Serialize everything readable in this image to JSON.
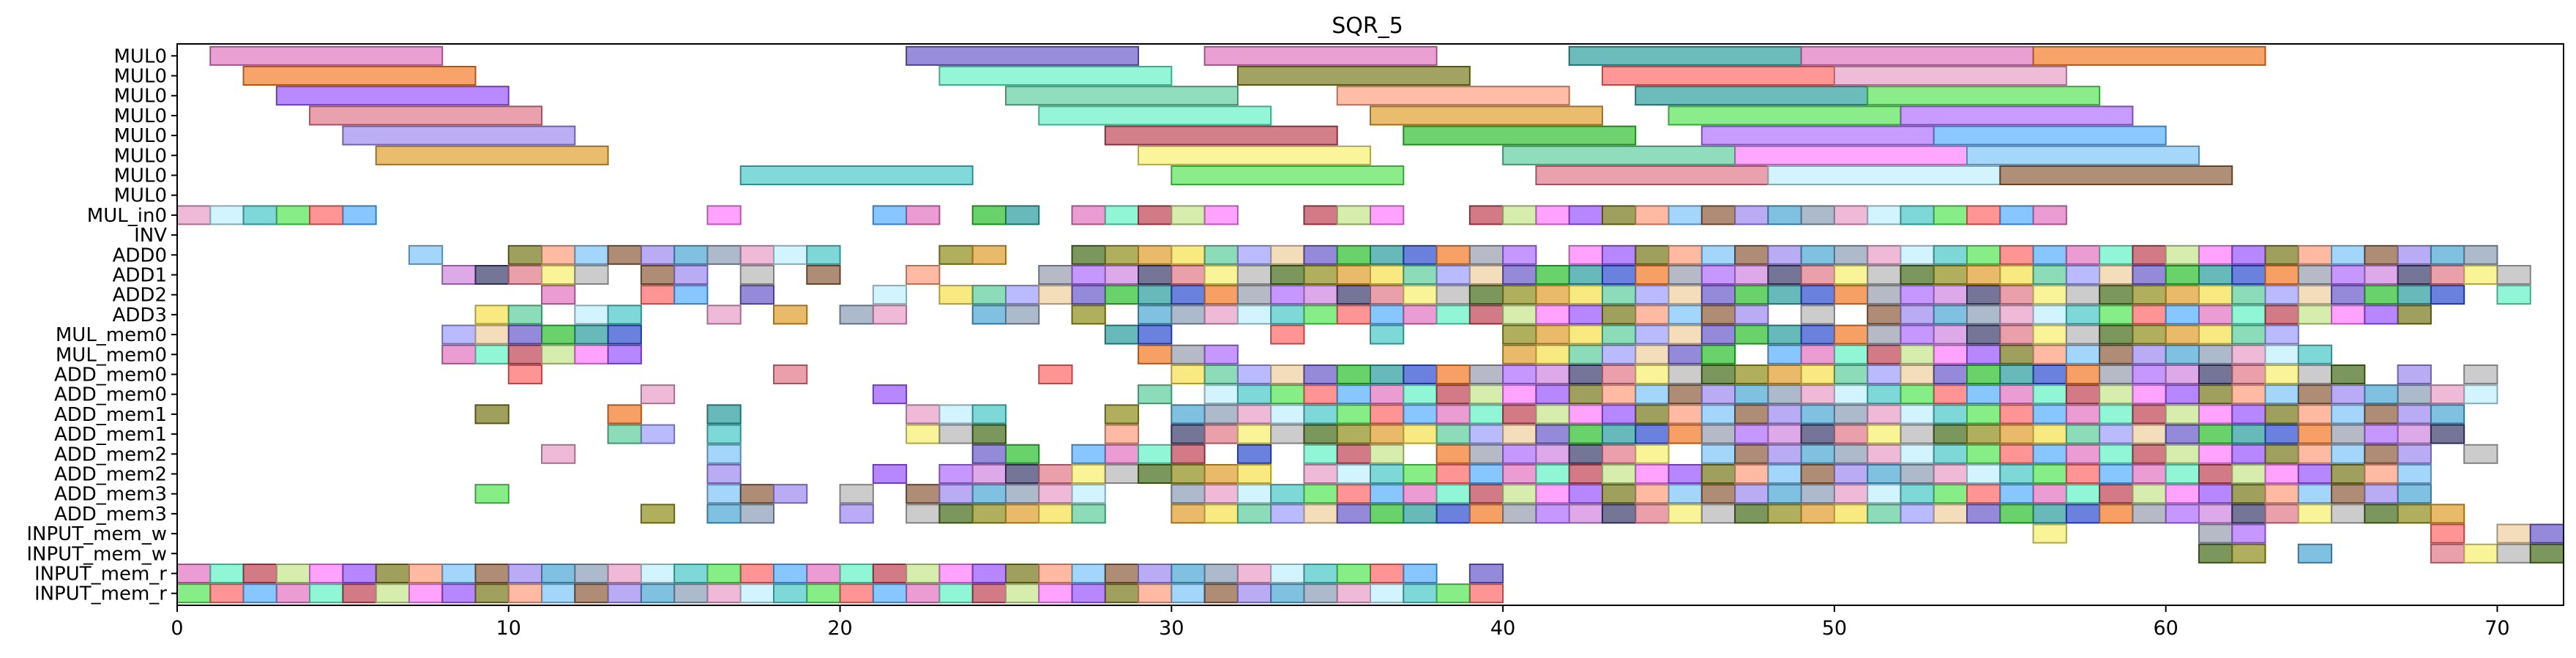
{
  "chart_data": {
    "type": "gantt",
    "title": "SQR_5",
    "xlabel": "",
    "ylabel": "",
    "xlim": [
      0,
      72
    ],
    "x_ticks": [
      0,
      10,
      20,
      30,
      40,
      50,
      60,
      70
    ],
    "rows": [
      "MUL0",
      "MUL0",
      "MUL0",
      "MUL0",
      "MUL0",
      "MUL0",
      "MUL0",
      "MUL0",
      "MUL_in0",
      "INV",
      "ADD0",
      "ADD1",
      "ADD2",
      "ADD3",
      "MUL_mem0",
      "MUL_mem0",
      "ADD_mem0",
      "ADD_mem0",
      "ADD_mem1",
      "ADD_mem1",
      "ADD_mem2",
      "ADD_mem2",
      "ADD_mem3",
      "ADD_mem3",
      "INPUT_mem_w",
      "INPUT_mem_w",
      "INPUT_mem_r",
      "INPUT_mem_r"
    ],
    "palette": [
      "#e377c2",
      "#f47c2a",
      "#9b59ff",
      "#e07b8a",
      "#a08cf0",
      "#e0a030",
      "#4cc9c9",
      "#6c5ccc",
      "#66f2c6",
      "#9aa0b0",
      "#7a7a20",
      "#f8f070",
      "#4fa9d6",
      "#f5e050",
      "#59e659",
      "#30c030",
      "#c04858",
      "#b070ff",
      "#ffa080",
      "#b8b8b8",
      "#8ca0b8",
      "#5fcf9f",
      "#ff6b6b",
      "#2ea0a0",
      "#c8e68f",
      "#d088e0",
      "#7fc6f8",
      "#4a6f20",
      "#e8a0c8",
      "#a0a0ff",
      "#59b0ff",
      "#3050d0",
      "#ff80ff",
      "#404070",
      "#8f6040",
      "#909020",
      "#c0f0ff",
      "#f0d0a0"
    ],
    "mul_bars": [
      {
        "row": 0,
        "start": 1,
        "end": 8,
        "c": 0
      },
      {
        "row": 0,
        "start": 22,
        "end": 29,
        "c": 7
      },
      {
        "row": 0,
        "start": 31,
        "end": 38,
        "c": 0
      },
      {
        "row": 0,
        "start": 42,
        "end": 49,
        "c": 23
      },
      {
        "row": 0,
        "start": 49,
        "end": 56,
        "c": 0
      },
      {
        "row": 0,
        "start": 56,
        "end": 63,
        "c": 1
      },
      {
        "row": 1,
        "start": 2,
        "end": 9,
        "c": 1
      },
      {
        "row": 1,
        "start": 23,
        "end": 30,
        "c": 8
      },
      {
        "row": 1,
        "start": 32,
        "end": 39,
        "c": 10
      },
      {
        "row": 1,
        "start": 43,
        "end": 50,
        "c": 22
      },
      {
        "row": 1,
        "start": 50,
        "end": 57,
        "c": 28
      },
      {
        "row": 2,
        "start": 3,
        "end": 10,
        "c": 2
      },
      {
        "row": 2,
        "start": 25,
        "end": 32,
        "c": 21
      },
      {
        "row": 2,
        "start": 35,
        "end": 42,
        "c": 18
      },
      {
        "row": 2,
        "start": 44,
        "end": 51,
        "c": 23
      },
      {
        "row": 2,
        "start": 51,
        "end": 58,
        "c": 14
      },
      {
        "row": 3,
        "start": 4,
        "end": 11,
        "c": 3
      },
      {
        "row": 3,
        "start": 26,
        "end": 33,
        "c": 8
      },
      {
        "row": 3,
        "start": 36,
        "end": 43,
        "c": 5
      },
      {
        "row": 3,
        "start": 45,
        "end": 52,
        "c": 14
      },
      {
        "row": 3,
        "start": 52,
        "end": 59,
        "c": 17
      },
      {
        "row": 4,
        "start": 5,
        "end": 12,
        "c": 4
      },
      {
        "row": 4,
        "start": 28,
        "end": 35,
        "c": 16
      },
      {
        "row": 4,
        "start": 37,
        "end": 44,
        "c": 15
      },
      {
        "row": 4,
        "start": 46,
        "end": 53,
        "c": 17
      },
      {
        "row": 4,
        "start": 53,
        "end": 60,
        "c": 30
      },
      {
        "row": 5,
        "start": 6,
        "end": 13,
        "c": 5
      },
      {
        "row": 5,
        "start": 29,
        "end": 36,
        "c": 11
      },
      {
        "row": 5,
        "start": 40,
        "end": 47,
        "c": 21
      },
      {
        "row": 5,
        "start": 47,
        "end": 54,
        "c": 32
      },
      {
        "row": 5,
        "start": 54,
        "end": 61,
        "c": 26
      },
      {
        "row": 6,
        "start": 17,
        "end": 24,
        "c": 6
      },
      {
        "row": 6,
        "start": 30,
        "end": 37,
        "c": 14
      },
      {
        "row": 6,
        "start": 41,
        "end": 48,
        "c": 3
      },
      {
        "row": 6,
        "start": 48,
        "end": 55,
        "c": 36
      },
      {
        "row": 6,
        "start": 55,
        "end": 62,
        "c": 34
      }
    ],
    "unit_rows": [
      {
        "row": 8,
        "starts": [
          0,
          1,
          2,
          3,
          4,
          5,
          16,
          21,
          22,
          24,
          25,
          27,
          28,
          29,
          30,
          31,
          34,
          35,
          36,
          39,
          40,
          41,
          42,
          43,
          44,
          45,
          46,
          47,
          48,
          49,
          50,
          51,
          52,
          53,
          54,
          55,
          56
        ]
      },
      {
        "row": 10,
        "starts": [
          7,
          10,
          11,
          12,
          13,
          14,
          15,
          16,
          17,
          18,
          19,
          23,
          24,
          27,
          28,
          29,
          30,
          31,
          32,
          33,
          34,
          35,
          36,
          37,
          38,
          39,
          40,
          42,
          43,
          44,
          45,
          46,
          47,
          48,
          49,
          50,
          51,
          52,
          53,
          54,
          55,
          56,
          57,
          58,
          59,
          60,
          61,
          62,
          63,
          64,
          65,
          66,
          67,
          68,
          69
        ]
      },
      {
        "row": 11,
        "starts": [
          8,
          9,
          10,
          11,
          12,
          14,
          15,
          17,
          19,
          22,
          26,
          27,
          28,
          29,
          30,
          31,
          32,
          33,
          34,
          35,
          36,
          37,
          38,
          39,
          40,
          41,
          42,
          43,
          44,
          45,
          46,
          47,
          48,
          49,
          50,
          51,
          52,
          53,
          54,
          55,
          56,
          57,
          58,
          59,
          60,
          61,
          62,
          63,
          64,
          65,
          66,
          67,
          68,
          69,
          70
        ]
      },
      {
        "row": 12,
        "starts": [
          11,
          14,
          15,
          17,
          21,
          23,
          24,
          25,
          26,
          27,
          28,
          29,
          30,
          31,
          32,
          33,
          34,
          35,
          36,
          37,
          38,
          39,
          40,
          41,
          42,
          43,
          44,
          45,
          46,
          47,
          48,
          49,
          50,
          51,
          52,
          53,
          54,
          55,
          56,
          57,
          58,
          59,
          60,
          61,
          62,
          63,
          64,
          65,
          66,
          67,
          68,
          70
        ]
      },
      {
        "row": 13,
        "starts": [
          9,
          10,
          12,
          13,
          16,
          18,
          20,
          21,
          24,
          25,
          27,
          29,
          30,
          31,
          32,
          33,
          34,
          35,
          36,
          37,
          38,
          39,
          40,
          41,
          42,
          43,
          44,
          45,
          46,
          47,
          49,
          51,
          52,
          53,
          54,
          55,
          56,
          57,
          58,
          59,
          60,
          61,
          62,
          63,
          64,
          65,
          66,
          67
        ]
      },
      {
        "row": 14,
        "starts": [
          8,
          9,
          10,
          11,
          12,
          13,
          28,
          29,
          33,
          36,
          40,
          41,
          42,
          43,
          44,
          45,
          46,
          47,
          48,
          49,
          50,
          51,
          52,
          53,
          54,
          55,
          56,
          57,
          58,
          59,
          60,
          61,
          62,
          63
        ]
      },
      {
        "row": 15,
        "starts": [
          8,
          9,
          10,
          11,
          12,
          13,
          29,
          30,
          31,
          40,
          41,
          42,
          43,
          44,
          45,
          46,
          48,
          49,
          50,
          51,
          52,
          53,
          54,
          55,
          56,
          57,
          58,
          59,
          60,
          61,
          62,
          63,
          64
        ]
      },
      {
        "row": 16,
        "starts": [
          10,
          18,
          26,
          30,
          31,
          32,
          33,
          34,
          35,
          36,
          37,
          38,
          39,
          40,
          41,
          42,
          43,
          44,
          45,
          46,
          47,
          48,
          49,
          50,
          51,
          52,
          53,
          54,
          55,
          56,
          57,
          58,
          59,
          60,
          61,
          62,
          63,
          64,
          65,
          67,
          69
        ]
      },
      {
        "row": 17,
        "starts": [
          14,
          21,
          29,
          31,
          32,
          33,
          34,
          35,
          36,
          37,
          38,
          39,
          40,
          41,
          42,
          43,
          44,
          45,
          46,
          47,
          48,
          49,
          50,
          51,
          52,
          53,
          54,
          55,
          56,
          57,
          58,
          59,
          60,
          61,
          62,
          63,
          64,
          65,
          66,
          67,
          68,
          69
        ]
      },
      {
        "row": 18,
        "starts": [
          9,
          13,
          16,
          22,
          23,
          24,
          28,
          30,
          31,
          32,
          33,
          34,
          35,
          36,
          37,
          38,
          39,
          40,
          41,
          42,
          43,
          44,
          45,
          46,
          47,
          48,
          49,
          50,
          51,
          52,
          53,
          54,
          55,
          56,
          57,
          58,
          59,
          60,
          61,
          62,
          63,
          64,
          65,
          66,
          67,
          68
        ]
      },
      {
        "row": 19,
        "starts": [
          13,
          14,
          16,
          22,
          23,
          24,
          28,
          30,
          31,
          32,
          33,
          34,
          35,
          36,
          37,
          38,
          39,
          40,
          41,
          42,
          43,
          44,
          45,
          46,
          47,
          48,
          49,
          50,
          51,
          52,
          53,
          54,
          55,
          56,
          57,
          58,
          59,
          60,
          61,
          62,
          63,
          64,
          65,
          66,
          67,
          68
        ]
      },
      {
        "row": 20,
        "starts": [
          11,
          16,
          24,
          25,
          27,
          28,
          29,
          30,
          32,
          34,
          35,
          36,
          38,
          39,
          40,
          41,
          42,
          43,
          44,
          46,
          47,
          48,
          49,
          50,
          51,
          52,
          53,
          54,
          55,
          56,
          57,
          58,
          59,
          60,
          61,
          62,
          63,
          64,
          65,
          66,
          67,
          69
        ]
      },
      {
        "row": 21,
        "starts": [
          16,
          21,
          23,
          24,
          25,
          26,
          27,
          28,
          29,
          30,
          31,
          32,
          34,
          35,
          36,
          37,
          38,
          39,
          40,
          41,
          42,
          43,
          44,
          45,
          46,
          47,
          48,
          49,
          50,
          51,
          52,
          53,
          54,
          55,
          56,
          57,
          58,
          59,
          60,
          61,
          62,
          63,
          64,
          65,
          66,
          67
        ]
      },
      {
        "row": 22,
        "starts": [
          9,
          16,
          17,
          18,
          20,
          22,
          23,
          24,
          25,
          26,
          27,
          30,
          31,
          32,
          33,
          34,
          35,
          36,
          37,
          38,
          39,
          40,
          41,
          42,
          43,
          44,
          45,
          46,
          47,
          48,
          49,
          50,
          51,
          52,
          53,
          54,
          55,
          56,
          57,
          58,
          59,
          60,
          61,
          62,
          63,
          64,
          65,
          66,
          67
        ]
      },
      {
        "row": 23,
        "starts": [
          14,
          16,
          17,
          20,
          22,
          23,
          24,
          25,
          26,
          27,
          30,
          31,
          32,
          33,
          34,
          35,
          36,
          37,
          38,
          39,
          40,
          41,
          42,
          43,
          44,
          45,
          46,
          47,
          48,
          49,
          50,
          51,
          52,
          53,
          54,
          55,
          56,
          57,
          58,
          59,
          60,
          61,
          62,
          63,
          64,
          65,
          66,
          67,
          68
        ]
      },
      {
        "row": 24,
        "starts": [
          56,
          61,
          62,
          68,
          70,
          71
        ]
      },
      {
        "row": 25,
        "starts": [
          61,
          62,
          64,
          68,
          69,
          70,
          71
        ]
      },
      {
        "row": 26,
        "starts": [
          0,
          1,
          2,
          3,
          4,
          5,
          6,
          7,
          8,
          9,
          10,
          11,
          12,
          13,
          14,
          15,
          16,
          17,
          18,
          19,
          20,
          21,
          22,
          23,
          24,
          25,
          26,
          27,
          28,
          29,
          30,
          31,
          32,
          33,
          34,
          35,
          36,
          37,
          39
        ]
      },
      {
        "row": 27,
        "starts": [
          0,
          1,
          2,
          3,
          4,
          5,
          6,
          7,
          8,
          9,
          10,
          11,
          12,
          13,
          14,
          15,
          16,
          17,
          18,
          19,
          20,
          21,
          22,
          23,
          24,
          25,
          26,
          27,
          28,
          29,
          30,
          31,
          32,
          33,
          34,
          35,
          36,
          37,
          38,
          39
        ]
      }
    ]
  }
}
